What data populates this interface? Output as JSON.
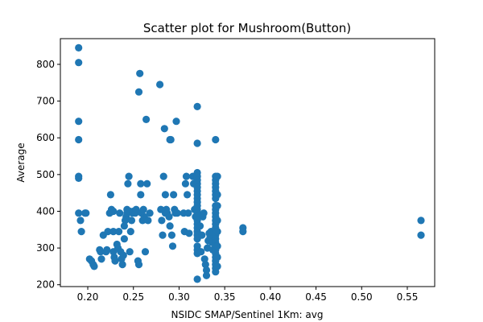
{
  "chart_data": {
    "type": "scatter",
    "title": "Scatter plot for Mushroom(Button)",
    "xlabel": "NSIDC SMAP/Sentinel 1Km: avg",
    "ylabel": "Average",
    "xlim": [
      0.17,
      0.58
    ],
    "ylim": [
      195,
      870
    ],
    "xticks": [
      0.2,
      0.25,
      0.3,
      0.35,
      0.4,
      0.45,
      0.5,
      0.55
    ],
    "xtick_labels": [
      "0.20",
      "0.25",
      "0.30",
      "0.35",
      "0.40",
      "0.45",
      "0.50",
      "0.55"
    ],
    "yticks": [
      200,
      300,
      400,
      500,
      600,
      700,
      800
    ],
    "ytick_labels": [
      "200",
      "300",
      "400",
      "500",
      "600",
      "700",
      "800"
    ],
    "grid": false,
    "color": "#1f77b4",
    "points": [
      [
        0.19,
        845
      ],
      [
        0.19,
        805
      ],
      [
        0.19,
        645
      ],
      [
        0.19,
        595
      ],
      [
        0.19,
        495
      ],
      [
        0.19,
        490
      ],
      [
        0.19,
        395
      ],
      [
        0.192,
        375
      ],
      [
        0.193,
        345
      ],
      [
        0.197,
        395
      ],
      [
        0.198,
        395
      ],
      [
        0.202,
        270
      ],
      [
        0.204,
        265
      ],
      [
        0.206,
        255
      ],
      [
        0.207,
        250
      ],
      [
        0.213,
        295
      ],
      [
        0.214,
        290
      ],
      [
        0.215,
        270
      ],
      [
        0.217,
        335
      ],
      [
        0.22,
        290
      ],
      [
        0.221,
        295
      ],
      [
        0.222,
        345
      ],
      [
        0.224,
        395
      ],
      [
        0.225,
        445
      ],
      [
        0.226,
        405
      ],
      [
        0.228,
        400
      ],
      [
        0.228,
        345
      ],
      [
        0.228,
        290
      ],
      [
        0.229,
        275
      ],
      [
        0.23,
        265
      ],
      [
        0.232,
        310
      ],
      [
        0.233,
        300
      ],
      [
        0.234,
        345
      ],
      [
        0.235,
        395
      ],
      [
        0.236,
        290
      ],
      [
        0.237,
        270
      ],
      [
        0.238,
        255
      ],
      [
        0.239,
        280
      ],
      [
        0.24,
        325
      ],
      [
        0.24,
        360
      ],
      [
        0.241,
        375
      ],
      [
        0.242,
        385
      ],
      [
        0.243,
        395
      ],
      [
        0.243,
        405
      ],
      [
        0.244,
        475
      ],
      [
        0.245,
        495
      ],
      [
        0.246,
        400
      ],
      [
        0.246,
        290
      ],
      [
        0.247,
        345
      ],
      [
        0.248,
        375
      ],
      [
        0.249,
        395
      ],
      [
        0.25,
        400
      ],
      [
        0.252,
        395
      ],
      [
        0.253,
        405
      ],
      [
        0.255,
        265
      ],
      [
        0.256,
        255
      ],
      [
        0.256,
        725
      ],
      [
        0.257,
        775
      ],
      [
        0.258,
        475
      ],
      [
        0.258,
        445
      ],
      [
        0.259,
        395
      ],
      [
        0.26,
        375
      ],
      [
        0.261,
        405
      ],
      [
        0.262,
        385
      ],
      [
        0.263,
        290
      ],
      [
        0.264,
        650
      ],
      [
        0.265,
        475
      ],
      [
        0.266,
        375
      ],
      [
        0.268,
        395
      ],
      [
        0.279,
        745
      ],
      [
        0.28,
        405
      ],
      [
        0.281,
        375
      ],
      [
        0.282,
        335
      ],
      [
        0.283,
        495
      ],
      [
        0.284,
        625
      ],
      [
        0.285,
        445
      ],
      [
        0.285,
        395
      ],
      [
        0.286,
        405
      ],
      [
        0.287,
        395
      ],
      [
        0.289,
        385
      ],
      [
        0.29,
        360
      ],
      [
        0.29,
        595
      ],
      [
        0.291,
        595
      ],
      [
        0.292,
        335
      ],
      [
        0.293,
        305
      ],
      [
        0.294,
        445
      ],
      [
        0.295,
        405
      ],
      [
        0.296,
        395
      ],
      [
        0.297,
        645
      ],
      [
        0.298,
        395
      ],
      [
        0.305,
        395
      ],
      [
        0.306,
        345
      ],
      [
        0.307,
        475
      ],
      [
        0.308,
        495
      ],
      [
        0.309,
        445
      ],
      [
        0.31,
        395
      ],
      [
        0.311,
        340
      ],
      [
        0.315,
        495
      ],
      [
        0.316,
        475
      ],
      [
        0.317,
        405
      ],
      [
        0.318,
        385
      ],
      [
        0.32,
        685
      ],
      [
        0.32,
        585
      ],
      [
        0.32,
        505
      ],
      [
        0.32,
        495
      ],
      [
        0.32,
        485
      ],
      [
        0.32,
        475
      ],
      [
        0.32,
        465
      ],
      [
        0.32,
        455
      ],
      [
        0.32,
        445
      ],
      [
        0.32,
        435
      ],
      [
        0.32,
        425
      ],
      [
        0.32,
        415
      ],
      [
        0.32,
        405
      ],
      [
        0.32,
        395
      ],
      [
        0.32,
        385
      ],
      [
        0.32,
        375
      ],
      [
        0.32,
        365
      ],
      [
        0.32,
        355
      ],
      [
        0.32,
        345
      ],
      [
        0.32,
        335
      ],
      [
        0.32,
        325
      ],
      [
        0.32,
        305
      ],
      [
        0.32,
        295
      ],
      [
        0.32,
        285
      ],
      [
        0.32,
        215
      ],
      [
        0.323,
        360
      ],
      [
        0.324,
        290
      ],
      [
        0.325,
        335
      ],
      [
        0.326,
        385
      ],
      [
        0.327,
        395
      ],
      [
        0.328,
        270
      ],
      [
        0.329,
        255
      ],
      [
        0.33,
        240
      ],
      [
        0.33,
        225
      ],
      [
        0.331,
        300
      ],
      [
        0.332,
        320
      ],
      [
        0.333,
        340
      ],
      [
        0.334,
        330
      ],
      [
        0.335,
        345
      ],
      [
        0.336,
        315
      ],
      [
        0.337,
        295
      ],
      [
        0.34,
        595
      ],
      [
        0.34,
        495
      ],
      [
        0.34,
        485
      ],
      [
        0.34,
        475
      ],
      [
        0.34,
        465
      ],
      [
        0.34,
        455
      ],
      [
        0.34,
        445
      ],
      [
        0.34,
        435
      ],
      [
        0.34,
        415
      ],
      [
        0.34,
        405
      ],
      [
        0.34,
        395
      ],
      [
        0.34,
        385
      ],
      [
        0.34,
        375
      ],
      [
        0.34,
        365
      ],
      [
        0.34,
        355
      ],
      [
        0.34,
        345
      ],
      [
        0.34,
        335
      ],
      [
        0.34,
        325
      ],
      [
        0.34,
        315
      ],
      [
        0.34,
        305
      ],
      [
        0.34,
        295
      ],
      [
        0.34,
        285
      ],
      [
        0.34,
        275
      ],
      [
        0.34,
        265
      ],
      [
        0.34,
        255
      ],
      [
        0.34,
        245
      ],
      [
        0.34,
        235
      ],
      [
        0.342,
        495
      ],
      [
        0.342,
        445
      ],
      [
        0.342,
        415
      ],
      [
        0.342,
        375
      ],
      [
        0.342,
        345
      ],
      [
        0.342,
        305
      ],
      [
        0.342,
        275
      ],
      [
        0.342,
        250
      ],
      [
        0.37,
        355
      ],
      [
        0.37,
        345
      ],
      [
        0.565,
        375
      ],
      [
        0.565,
        335
      ]
    ]
  }
}
